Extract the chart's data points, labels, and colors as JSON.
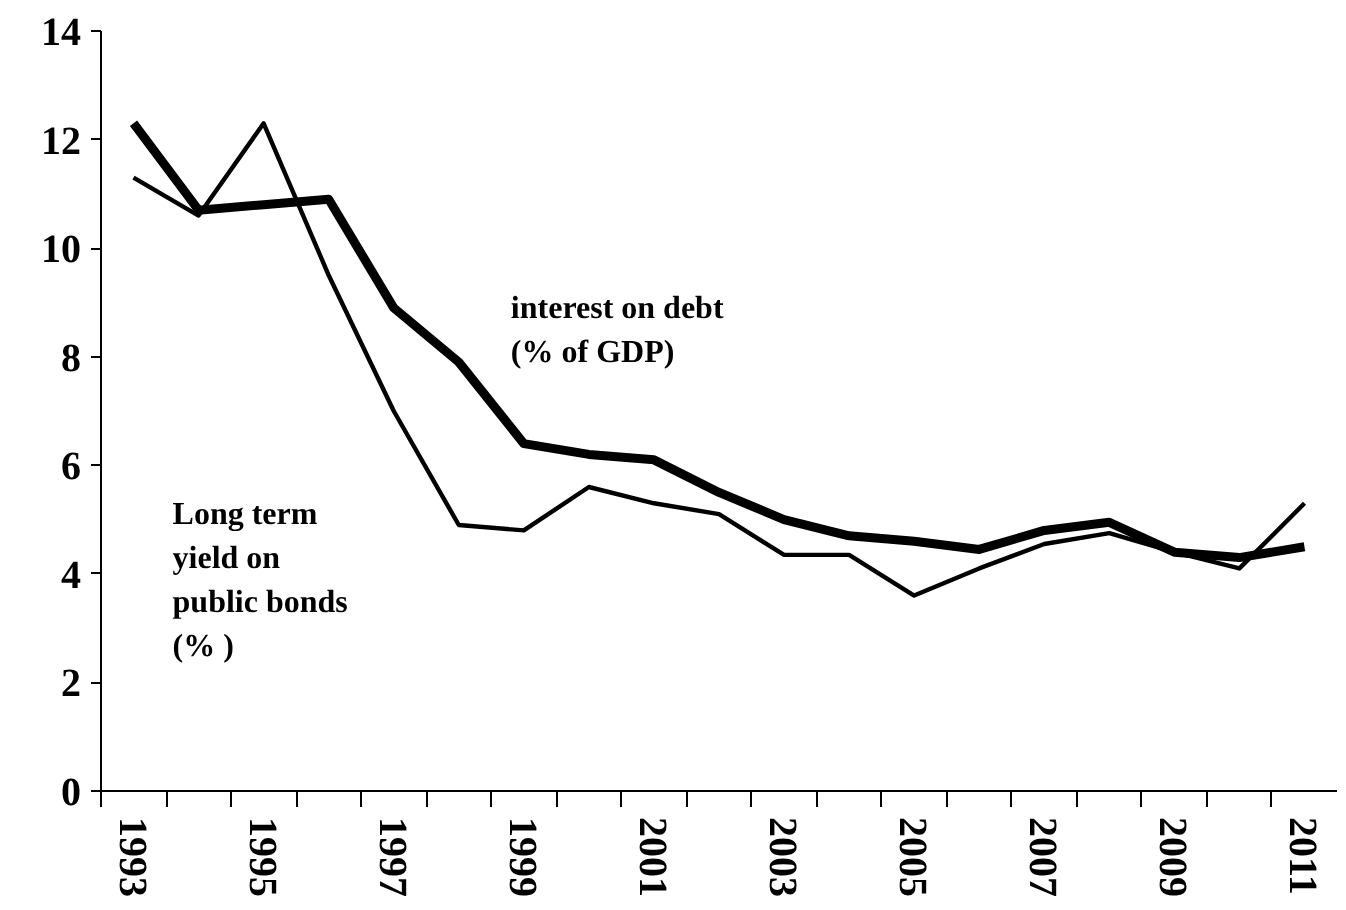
{
  "chart_data": {
    "type": "line",
    "categories": [
      "1993",
      null,
      "1995",
      null,
      "1997",
      null,
      "1999",
      null,
      "2001",
      null,
      "2003",
      null,
      "2005",
      null,
      "2007",
      null,
      "2009",
      null,
      "2011"
    ],
    "series": [
      {
        "name": "interest on debt\n(% of GDP)",
        "color": "#000000",
        "values": [
          12.3,
          10.7,
          10.8,
          10.9,
          8.9,
          7.9,
          6.4,
          6.2,
          6.1,
          5.5,
          5.0,
          4.7,
          4.6,
          4.45,
          4.8,
          4.95,
          4.4,
          4.3,
          4.5
        ]
      },
      {
        "name": "Long term\nyield on\npublic bonds\n(% )",
        "color": "#000000",
        "values": [
          11.3,
          10.6,
          12.3,
          9.5,
          7.0,
          4.9,
          4.8,
          5.6,
          5.3,
          5.1,
          4.35,
          4.35,
          3.6,
          4.1,
          4.55,
          4.75,
          4.4,
          4.1,
          5.3
        ]
      }
    ],
    "ylim": [
      0,
      14
    ],
    "yticks": [
      0,
      2,
      4,
      6,
      8,
      10,
      12,
      14
    ],
    "grid": false,
    "marker": "none",
    "line_style": "solid"
  }
}
